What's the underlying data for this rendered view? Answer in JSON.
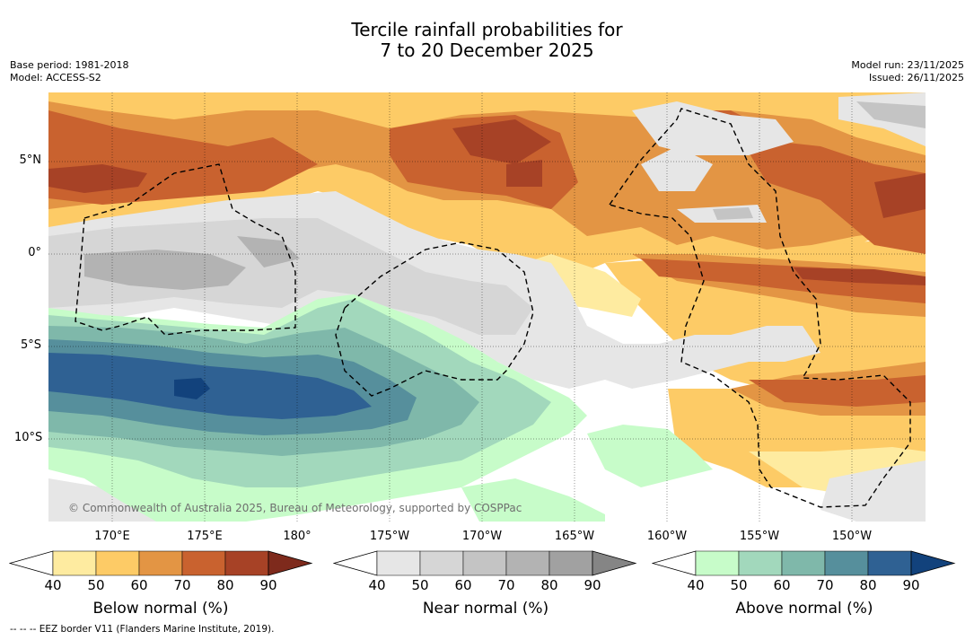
{
  "title": {
    "line1": "Tercile rainfall probabilities for",
    "line2": "7 to 20 December 2025"
  },
  "meta_left": {
    "base_period": "Base period: 1981-2018",
    "model": "Model: ACCESS-S2"
  },
  "meta_right": {
    "model_run": "Model run: 23/11/2025",
    "issued": "Issued: 26/11/2025"
  },
  "map": {
    "copyright": "© Commonwealth of Australia 2025, Bureau of Meteorology, supported by COSPPac",
    "lat_labels": [
      "5°N",
      "0°",
      "5°S",
      "10°S"
    ],
    "lon_labels": [
      "170°E",
      "175°E",
      "180°",
      "175°W",
      "170°W",
      "165°W",
      "160°W",
      "155°W",
      "150°W"
    ]
  },
  "colorbars": [
    {
      "title": "Below normal (%)",
      "ticks": [
        "40",
        "50",
        "60",
        "70",
        "80",
        "90"
      ],
      "colors": [
        "#ffffff",
        "#feeba0",
        "#fdcb66",
        "#e39544",
        "#c9622f",
        "#a74226",
        "#7e2a1c"
      ]
    },
    {
      "title": "Near normal (%)",
      "ticks": [
        "40",
        "50",
        "60",
        "70",
        "80",
        "90"
      ],
      "colors": [
        "#ffffff",
        "#e6e6e6",
        "#d6d6d6",
        "#c4c4c4",
        "#b3b3b3",
        "#a1a1a1",
        "#858585"
      ]
    },
    {
      "title": "Above normal (%)",
      "ticks": [
        "40",
        "50",
        "60",
        "70",
        "80",
        "90"
      ],
      "colors": [
        "#ffffff",
        "#c7fcc9",
        "#a2d8bc",
        "#7fb8aa",
        "#568f9c",
        "#2f6193",
        "#12427c"
      ]
    }
  ],
  "footnote": "--  --  -- EEZ border V11 (Flanders Marine Institute, 2019)."
}
